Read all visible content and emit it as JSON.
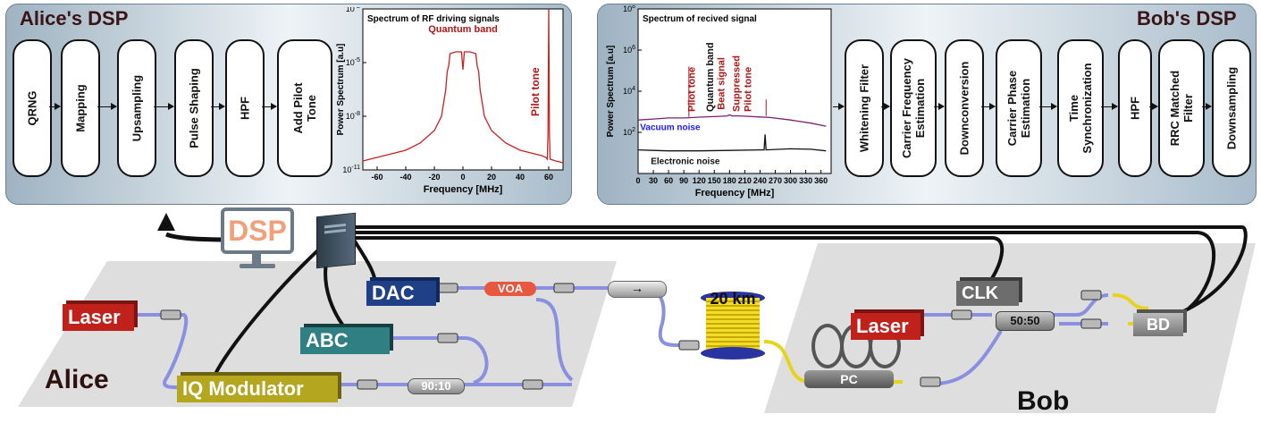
{
  "alice_dsp": {
    "title": "Alice's DSP",
    "blocks": [
      "QRNG",
      "Mapping",
      "Upsampling",
      "Pulse Shaping",
      "HPF",
      "Add Pilot\nTone"
    ]
  },
  "bob_dsp": {
    "title": "Bob's DSP",
    "blocks": [
      "Whitening Filter",
      "Carrier Frequency\nEstimation",
      "Downconversion",
      "Carrier Phase\nEstimation",
      "Time\nSynchronization",
      "HPF",
      "RRC Matched\nFilter",
      "Downsampling"
    ]
  },
  "chart_data": [
    {
      "type": "line",
      "title": "Spectrum of RF driving signals",
      "xlabel": "Frequency [MHz]",
      "ylabel": "Power Spectrum [a.u]",
      "xlim": [
        -70,
        70
      ],
      "ylim_log10": [
        -11,
        -2
      ],
      "xticks": [
        "-60",
        "-40",
        "-20",
        "0",
        "20",
        "40",
        "60"
      ],
      "yticks": [
        "10^-2",
        "10^-5",
        "10^-8",
        "10^-11"
      ],
      "annotations": [
        "Quantum band",
        "Pilot tone"
      ],
      "series": [
        {
          "color": "#cc1f1f",
          "x": [
            -70,
            -60,
            -40,
            -30,
            -20,
            -15,
            -12,
            -11,
            -10,
            -9,
            -5,
            -1,
            0,
            1,
            5,
            9,
            10,
            11,
            12,
            15,
            20,
            30,
            40,
            55,
            58,
            59,
            59.5,
            60,
            60.5,
            61,
            65,
            70
          ],
          "y_log10": [
            -10.5,
            -10.3,
            -9.9,
            -9.5,
            -8.8,
            -8.0,
            -6.5,
            -5.5,
            -5.2,
            -4.5,
            -4.4,
            -4.4,
            -5.4,
            -4.4,
            -4.4,
            -4.5,
            -5.2,
            -5.5,
            -6.5,
            -8.0,
            -8.8,
            -9.5,
            -9.9,
            -10.2,
            -10.3,
            -10.4,
            -9.0,
            -2.0,
            -9.0,
            -10.4,
            -10.5,
            -10.6
          ]
        }
      ]
    },
    {
      "type": "line",
      "title": "Spectrum of recived signal",
      "xlabel": "Frequency [MHz]",
      "ylabel": "Power Spectrum [a.u]",
      "xlim": [
        0,
        380
      ],
      "ylim_log10": [
        0,
        8
      ],
      "xticks": [
        "0",
        "30",
        "60",
        "90",
        "120",
        "150",
        "180",
        "210",
        "240",
        "270",
        "300",
        "330",
        "360"
      ],
      "yticks": [
        "10^2",
        "10^4",
        "10^6",
        "10^8"
      ],
      "annotations": [
        "Pilot tone",
        "Quantum band",
        "Beat signal",
        "Suppressed\nPilot tone",
        "Vacuum noise",
        "Electronic noise"
      ],
      "series": [
        {
          "color": "#7b1f7a",
          "x": [
            0,
            30,
            60,
            90,
            110,
            120,
            160,
            175,
            180,
            185,
            200,
            240,
            260,
            300,
            340,
            370
          ],
          "y_log10": [
            2.6,
            2.65,
            2.7,
            2.7,
            2.72,
            2.74,
            2.78,
            2.8,
            2.85,
            2.8,
            2.8,
            2.75,
            2.72,
            2.6,
            2.45,
            2.3
          ]
        },
        {
          "color": "#111111",
          "x": [
            0,
            30,
            60,
            120,
            180,
            240,
            248,
            250,
            252,
            300,
            340,
            370
          ],
          "y_log10": [
            1.15,
            1.12,
            1.1,
            1.1,
            1.12,
            1.15,
            1.15,
            1.9,
            1.15,
            1.2,
            1.18,
            1.1
          ]
        }
      ]
    }
  ],
  "setup": {
    "dsp_monitor_label": "DSP",
    "alice_label": "Alice",
    "bob_label": "Bob",
    "alice_laser": "Laser",
    "bob_laser": "Laser",
    "dac": "DAC",
    "abc": "ABC",
    "iq_modulator": "IQ Modulator",
    "voa": "VOA",
    "coupler_alice": "90:10",
    "fiber": "20 km",
    "pc": "PC",
    "clk": "CLK",
    "coupler_bob": "50:50",
    "bd": "BD"
  },
  "colors": {
    "panel_border": "#6d7f8c",
    "fiber": "#8a8fe0",
    "fiber_yellow": "#e7d21e",
    "laser_red": "#c0221b",
    "dac_blue": "#1f3f86",
    "abc_teal": "#2f7f83",
    "iq_yellow": "#b4a61e",
    "clk_gray": "#6d6d6d"
  }
}
